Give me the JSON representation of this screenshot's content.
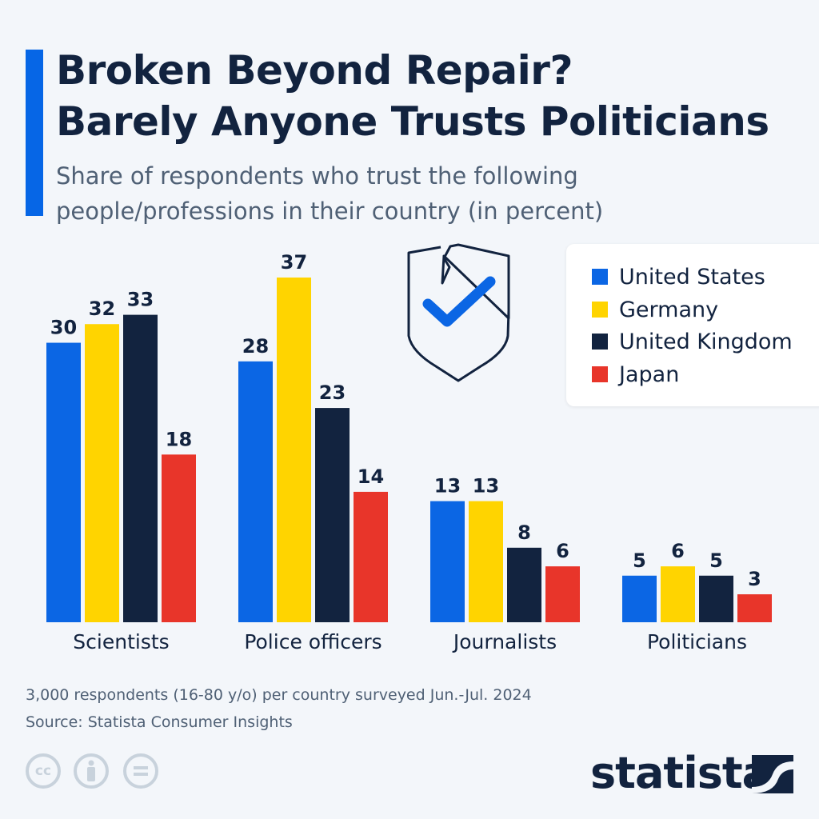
{
  "header": {
    "title_line1": "Broken Beyond Repair?",
    "title_line2": "Barely Anyone Trusts Politicians",
    "subtitle_line1": "Share of respondents who trust the following",
    "subtitle_line2": "people/professions in their country (in percent)"
  },
  "chart_data": {
    "type": "bar",
    "categories": [
      "Scientists",
      "Police officers",
      "Journalists",
      "Politicians"
    ],
    "series": [
      {
        "name": "United States",
        "color": "#0b66e4",
        "values": [
          30,
          28,
          13,
          5
        ]
      },
      {
        "name": "Germany",
        "color": "#ffd400",
        "values": [
          32,
          37,
          13,
          6
        ]
      },
      {
        "name": "United Kingdom",
        "color": "#12233f",
        "values": [
          33,
          23,
          8,
          5
        ]
      },
      {
        "name": "Japan",
        "color": "#e8352a",
        "values": [
          18,
          14,
          6,
          3
        ]
      }
    ],
    "ylim": [
      0,
      37
    ],
    "grid": false,
    "legend_position": "top-right",
    "data_labels": true
  },
  "icon": "broken-shield-checkmark-icon",
  "footer": {
    "note": "3,000 respondents (16-80 y/o) per country surveyed Jun.-Jul. 2024",
    "source": "Source: Statista Consumer Insights",
    "license_icons": [
      "cc-icon",
      "attribution-icon",
      "no-derivatives-icon"
    ],
    "cc_text": "cc",
    "logo": "statista"
  }
}
